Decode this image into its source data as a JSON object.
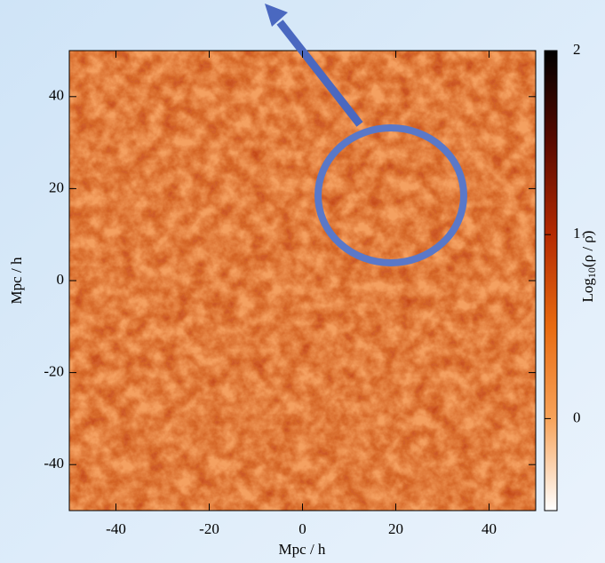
{
  "chart_data": {
    "type": "density_map",
    "xlabel": "Mpc / h",
    "ylabel": "Mpc / h",
    "xlim": [
      -50,
      50
    ],
    "ylim": [
      -50,
      50
    ],
    "xticks": [
      -40,
      -20,
      0,
      20,
      40
    ],
    "yticks": [
      -40,
      -20,
      0,
      20,
      40
    ],
    "colorbar": {
      "lim": [
        -0.5,
        2
      ],
      "ticks": [
        0,
        1,
        2
      ],
      "label": {
        "base": "Log",
        "subscript": "10",
        "rest": "(ρ / ρ̄)"
      },
      "colors": [
        "#ffffff",
        "#f7a35a",
        "#e86a10",
        "#b52a02",
        "#5a0a00",
        "#000000"
      ]
    }
  }
}
